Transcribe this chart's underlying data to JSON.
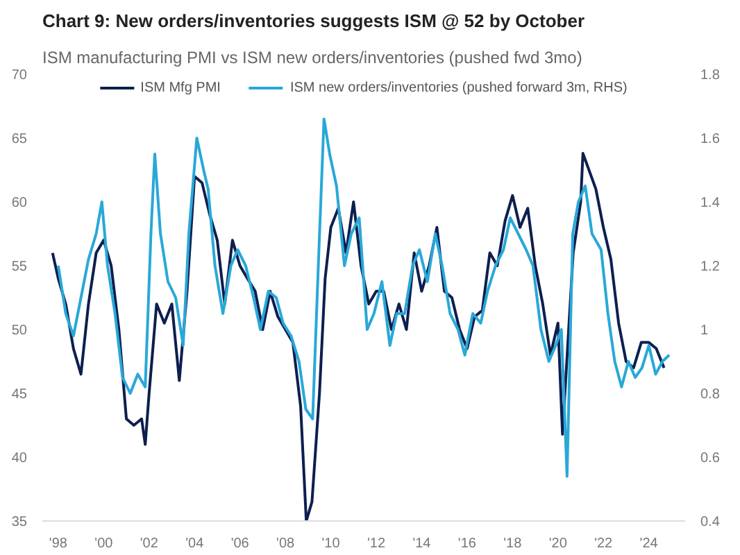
{
  "chart_data": {
    "type": "line",
    "title": "Chart 9: New orders/inventories suggests ISM @ 52 by October",
    "subtitle": "ISM manufacturing PMI vs ISM new orders/inventories (pushed fwd 3mo)",
    "xlim": [
      1997.3,
      2025.6
    ],
    "xticks": [
      {
        "value": 1998,
        "label": "'98"
      },
      {
        "value": 2000,
        "label": "'00"
      },
      {
        "value": 2002,
        "label": "'02"
      },
      {
        "value": 2004,
        "label": "'04"
      },
      {
        "value": 2006,
        "label": "'06"
      },
      {
        "value": 2008,
        "label": "'08"
      },
      {
        "value": 2010,
        "label": "'10"
      },
      {
        "value": 2012,
        "label": "'12"
      },
      {
        "value": 2014,
        "label": "'14"
      },
      {
        "value": 2016,
        "label": "'16"
      },
      {
        "value": 2018,
        "label": "'18"
      },
      {
        "value": 2020,
        "label": "'20"
      },
      {
        "value": 2022,
        "label": "'22"
      },
      {
        "value": 2024,
        "label": "'24"
      }
    ],
    "ylim": [
      35,
      70
    ],
    "yticks": [
      35,
      40,
      45,
      50,
      55,
      60,
      65,
      70
    ],
    "y2lim": [
      0.4,
      1.8
    ],
    "y2ticks": [
      0.4,
      0.6,
      0.8,
      1.0,
      1.2,
      1.4,
      1.6,
      1.8
    ],
    "legend": "top",
    "grid": false,
    "marker": "none",
    "line_style": "solid",
    "series": [
      {
        "name": "ISM Mfg PMI",
        "color": "#0d1f4f",
        "x": [
          1997.75,
          1998.0,
          1998.33,
          1998.67,
          1999.0,
          1999.33,
          1999.67,
          2000.0,
          2000.33,
          2000.67,
          2001.0,
          2001.33,
          2001.67,
          2001.83,
          2002.0,
          2002.33,
          2002.67,
          2003.0,
          2003.33,
          2003.67,
          2004.0,
          2004.33,
          2004.67,
          2005.0,
          2005.33,
          2005.67,
          2006.0,
          2006.33,
          2006.67,
          2007.0,
          2007.33,
          2007.67,
          2008.0,
          2008.33,
          2008.67,
          2008.92,
          2009.17,
          2009.5,
          2009.75,
          2010.0,
          2010.33,
          2010.67,
          2011.0,
          2011.33,
          2011.67,
          2012.0,
          2012.33,
          2012.67,
          2013.0,
          2013.33,
          2013.67,
          2014.0,
          2014.33,
          2014.67,
          2015.0,
          2015.33,
          2015.67,
          2016.0,
          2016.33,
          2016.67,
          2017.0,
          2017.33,
          2017.67,
          2018.0,
          2018.33,
          2018.67,
          2019.0,
          2019.33,
          2019.67,
          2020.0,
          2020.2,
          2020.67,
          2021.0,
          2021.1,
          2021.67,
          2022.0,
          2022.33,
          2022.67,
          2023.0,
          2023.33,
          2023.67,
          2024.0,
          2024.33,
          2024.67
        ],
        "values": [
          56,
          54,
          52,
          48.5,
          46.5,
          52,
          56,
          57,
          55,
          50,
          43,
          42.5,
          43,
          41,
          45,
          52,
          50.5,
          52,
          46,
          53,
          62,
          61.5,
          59,
          57,
          52,
          57,
          55,
          54,
          53,
          50,
          53,
          51,
          50,
          49,
          44,
          35,
          36.5,
          45,
          54,
          58,
          59.5,
          56,
          60,
          55,
          52,
          53,
          53,
          50,
          52,
          50,
          56,
          53,
          55,
          58,
          53,
          52.5,
          50,
          48.5,
          51,
          51.5,
          56,
          55,
          58.5,
          60.5,
          58,
          59.5,
          55,
          52,
          48,
          50.5,
          41.8,
          56,
          60,
          63.8,
          61,
          58,
          55.5,
          50.5,
          47.5,
          47,
          49,
          49,
          48.5,
          47
        ]
      },
      {
        "name": "ISM new orders/inventories (pushed forward 3m, RHS)",
        "color": "#29a8d8",
        "axis": "y2",
        "x": [
          1998.0,
          1998.33,
          1998.67,
          1999.0,
          1999.33,
          1999.67,
          1999.92,
          2000.17,
          2000.5,
          2000.83,
          2001.17,
          2001.5,
          2001.83,
          2002.08,
          2002.25,
          2002.5,
          2002.83,
          2003.17,
          2003.5,
          2003.75,
          2004.1,
          2004.4,
          2004.6,
          2004.9,
          2005.25,
          2005.6,
          2005.9,
          2006.25,
          2006.6,
          2006.9,
          2007.25,
          2007.6,
          2007.9,
          2008.25,
          2008.6,
          2008.9,
          2009.2,
          2009.45,
          2009.7,
          2009.95,
          2010.25,
          2010.6,
          2010.9,
          2011.25,
          2011.6,
          2011.9,
          2012.25,
          2012.6,
          2012.9,
          2013.25,
          2013.6,
          2013.9,
          2014.25,
          2014.6,
          2014.9,
          2015.25,
          2015.6,
          2015.9,
          2016.25,
          2016.6,
          2016.9,
          2017.25,
          2017.6,
          2017.9,
          2018.25,
          2018.6,
          2018.9,
          2019.25,
          2019.6,
          2019.9,
          2020.15,
          2020.4,
          2020.65,
          2020.9,
          2021.2,
          2021.5,
          2021.9,
          2022.2,
          2022.5,
          2022.8,
          2023.1,
          2023.4,
          2023.7,
          2024.0,
          2024.3,
          2024.6,
          2024.9
        ],
        "values": [
          1.2,
          1.05,
          0.98,
          1.1,
          1.22,
          1.3,
          1.4,
          1.2,
          1.05,
          0.85,
          0.8,
          0.86,
          0.82,
          1.3,
          1.55,
          1.3,
          1.15,
          1.1,
          0.95,
          1.3,
          1.6,
          1.5,
          1.44,
          1.2,
          1.05,
          1.2,
          1.25,
          1.2,
          1.1,
          1.0,
          1.12,
          1.1,
          1.02,
          0.98,
          0.9,
          0.75,
          0.72,
          1.2,
          1.66,
          1.55,
          1.45,
          1.2,
          1.3,
          1.35,
          1.0,
          1.05,
          1.15,
          0.95,
          1.05,
          1.05,
          1.2,
          1.25,
          1.15,
          1.3,
          1.2,
          1.05,
          1.0,
          0.92,
          1.05,
          1.02,
          1.12,
          1.2,
          1.25,
          1.35,
          1.3,
          1.25,
          1.2,
          1.0,
          0.9,
          0.95,
          1.0,
          0.54,
          1.3,
          1.4,
          1.45,
          1.3,
          1.25,
          1.05,
          0.9,
          0.82,
          0.9,
          0.85,
          0.88,
          0.95,
          0.86,
          0.9,
          0.92
        ]
      }
    ]
  }
}
